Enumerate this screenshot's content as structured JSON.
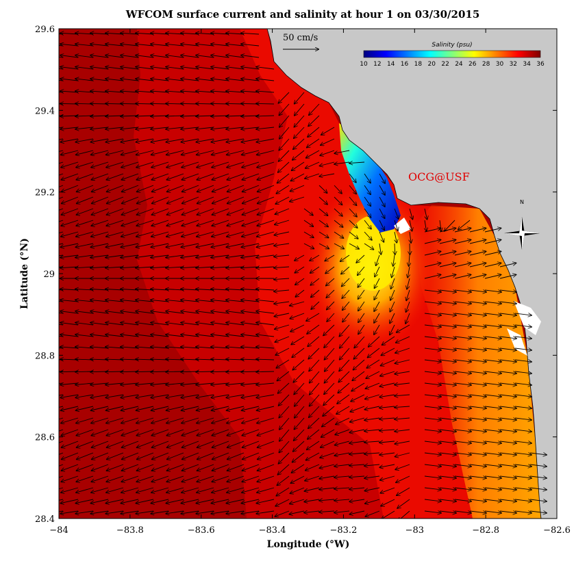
{
  "chart_data": {
    "type": "heatmap",
    "title": "WFCOM surface current and salinity at hour 1 on 03/30/2015",
    "xlabel": "Longitude (°W)",
    "ylabel": "Latitude (°N)",
    "xlim": [
      -84,
      -82.6
    ],
    "ylim": [
      28.4,
      29.6
    ],
    "x_ticks": [
      -84,
      -83.8,
      -83.6,
      -83.4,
      -83.2,
      -83,
      -82.8,
      -82.6
    ],
    "x_tick_labels": [
      "−84",
      "−83.8",
      "−83.6",
      "−83.4",
      "−83.2",
      "−83",
      "−82.8",
      "−82.6"
    ],
    "y_ticks": [
      28.4,
      28.6,
      28.8,
      29,
      29.2,
      29.4,
      29.6
    ],
    "y_tick_labels": [
      "28.4",
      "28.6",
      "28.8",
      "29",
      "29.2",
      "29.4",
      "29.6"
    ],
    "colorbar": {
      "title": "Salinity (psu)",
      "range": [
        10,
        36
      ],
      "ticks": [
        10,
        12,
        14,
        16,
        18,
        20,
        22,
        24,
        26,
        28,
        30,
        32,
        34,
        36
      ],
      "tick_labels": [
        "10",
        "12",
        "14",
        "16",
        "18",
        "20",
        "22",
        "24",
        "26",
        "28",
        "30",
        "32",
        "34",
        "36"
      ],
      "colors": [
        "#00007f",
        "#0000ff",
        "#007fff",
        "#00ffff",
        "#7fff7f",
        "#ffff00",
        "#ff7f00",
        "#ff0000",
        "#7f0000"
      ]
    },
    "scale_vector": {
      "label": "50 cm/s",
      "speed_cm_s": 50
    },
    "watermark": "OCG@USF",
    "north_label": "N",
    "colors": {
      "land": "#c8c8c8",
      "ocean_deep": "#a80000",
      "frame": "#000000",
      "watermark": "#e00000"
    },
    "salinity_field": [
      {
        "lon": -84.0,
        "lat": 29.0,
        "psu": 35.8
      },
      {
        "lon": -83.7,
        "lat": 29.3,
        "psu": 35.2
      },
      {
        "lon": -83.45,
        "lat": 29.5,
        "psu": 34.2
      },
      {
        "lon": -83.2,
        "lat": 29.3,
        "psu": 12
      },
      {
        "lon": -83.12,
        "lat": 29.15,
        "psu": 20
      },
      {
        "lon": -83.15,
        "lat": 29.0,
        "psu": 27
      },
      {
        "lon": -83.0,
        "lat": 28.85,
        "psu": 31
      },
      {
        "lon": -82.75,
        "lat": 28.9,
        "psu": 29
      },
      {
        "lon": -82.72,
        "lat": 28.5,
        "psu": 27
      },
      {
        "lon": -83.5,
        "lat": 28.6,
        "psu": 35.5
      }
    ],
    "current_field_note_pattern": [
      "westward offshore",
      "eastward near Cedar Key coast",
      "southward plume outflow near -83.15"
    ]
  }
}
